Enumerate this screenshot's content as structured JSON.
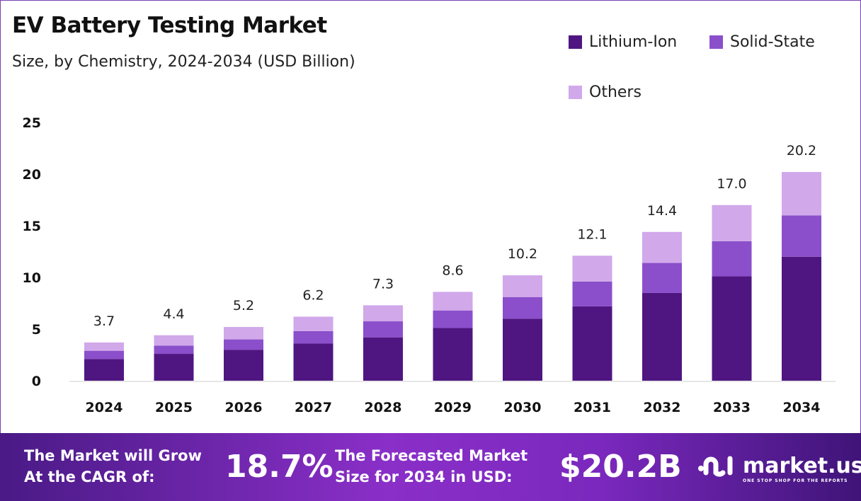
{
  "chart_data": {
    "type": "bar",
    "stacked": true,
    "title": "EV Battery Testing Market",
    "subtitle": "Size, by Chemistry, 2024-2034 (USD Billion)",
    "categories": [
      "2024",
      "2025",
      "2026",
      "2027",
      "2028",
      "2029",
      "2030",
      "2031",
      "2032",
      "2033",
      "2034"
    ],
    "series": [
      {
        "name": "Lithium-Ion",
        "color": "#4f1682",
        "values": [
          2.1,
          2.6,
          3.0,
          3.6,
          4.2,
          5.1,
          6.0,
          7.2,
          8.5,
          10.1,
          12.0
        ]
      },
      {
        "name": "Solid-State",
        "color": "#8b4fcb",
        "values": [
          0.8,
          0.8,
          1.0,
          1.2,
          1.55,
          1.7,
          2.1,
          2.4,
          2.9,
          3.4,
          4.0
        ]
      },
      {
        "name": "Others",
        "color": "#d1a8ea",
        "values": [
          0.8,
          1.0,
          1.2,
          1.4,
          1.55,
          1.8,
          2.1,
          2.5,
          3.0,
          3.5,
          4.2
        ]
      }
    ],
    "totals": [
      "3.7",
      "4.4",
      "5.2",
      "6.2",
      "7.3",
      "8.6",
      "10.2",
      "12.1",
      "14.4",
      "17.0",
      "20.2"
    ],
    "yticks": [
      "0",
      "5",
      "10",
      "15",
      "20",
      "25"
    ],
    "ylim": [
      0,
      25
    ],
    "grid": false,
    "legend": "top-right"
  },
  "footer": {
    "cagr_label_1": "The Market will Grow",
    "cagr_label_2": "At the CAGR of:",
    "cagr_value": "18.7%",
    "forecast_label_1": "The Forecasted Market",
    "forecast_label_2": "Size for 2034 in USD:",
    "forecast_value": "$20.2B",
    "logo_text": "market.us",
    "logo_tagline": "ONE STOP SHOP FOR THE REPORTS"
  }
}
